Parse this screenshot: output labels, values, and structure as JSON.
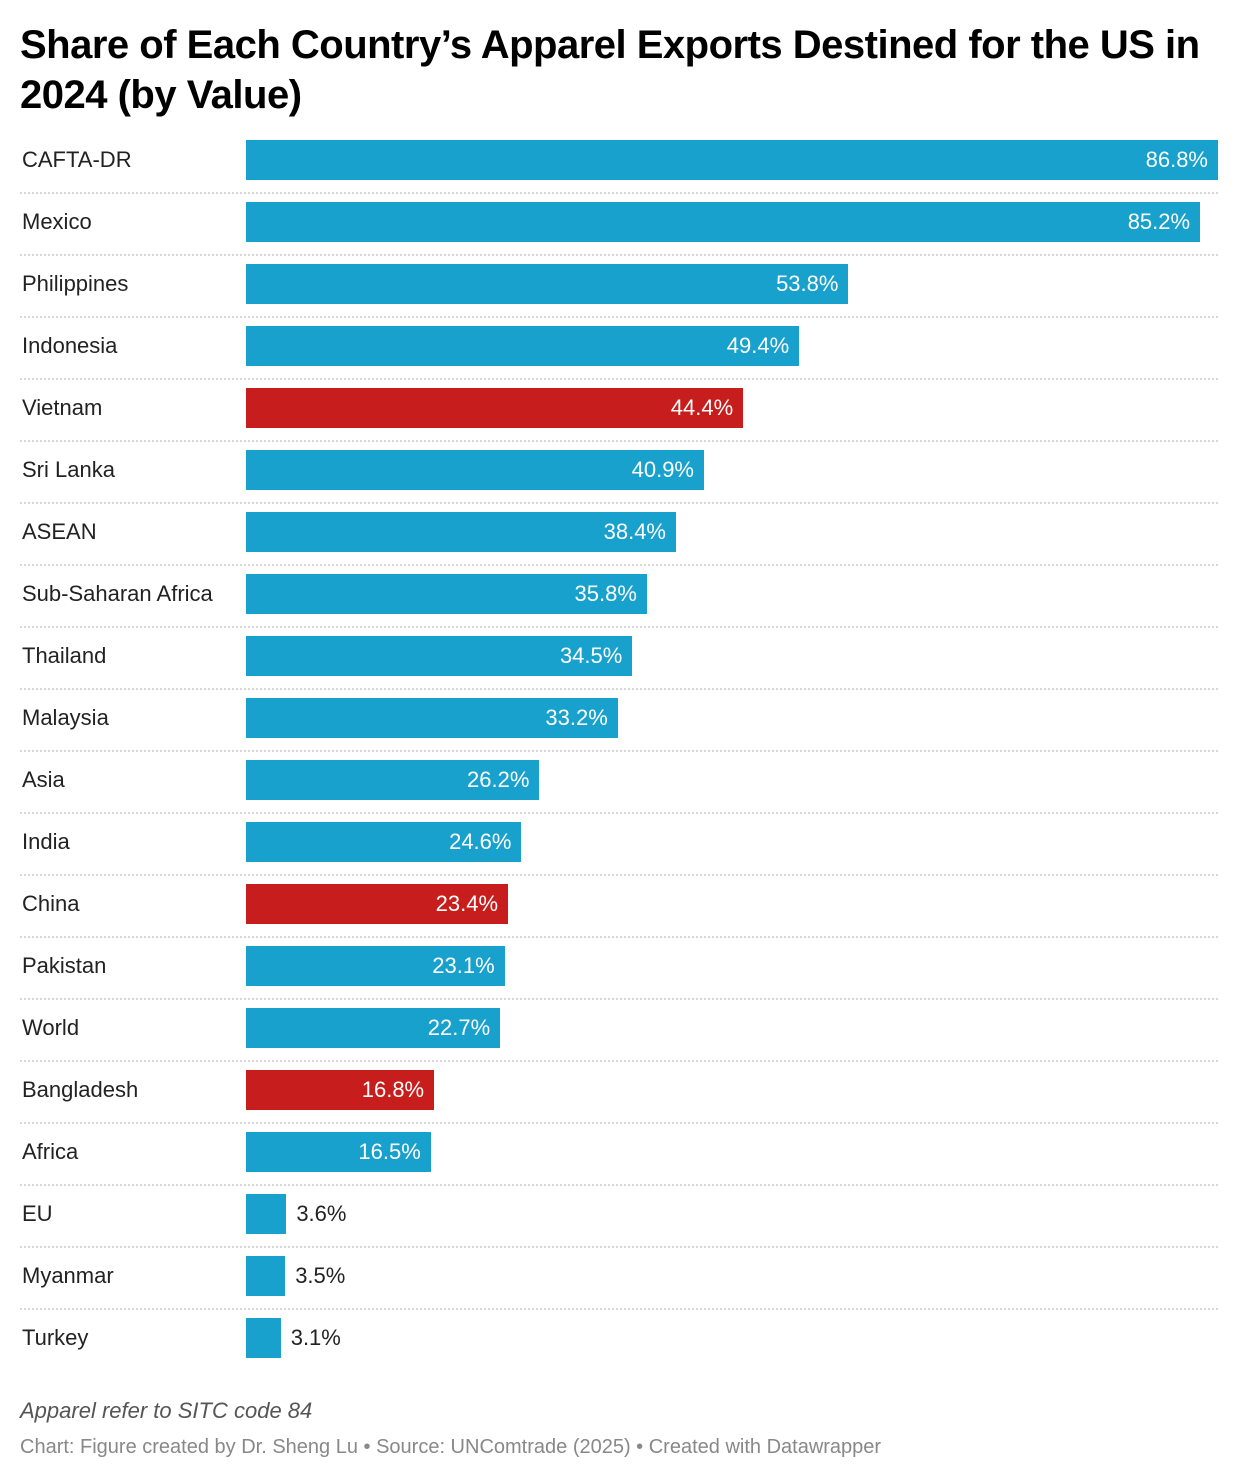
{
  "title": "Share of Each Country’s Apparel Exports Destined for the US in 2024 (by Value)",
  "notes": "Apparel refer to SITC code 84",
  "source": "Chart: Figure created by Dr. Sheng Lu • Source: UNComtrade (2025) • Created with Datawrapper",
  "colors": {
    "default": "#18a1cd",
    "highlight": "#c71e1d"
  },
  "chart_data": {
    "type": "bar",
    "orientation": "horizontal",
    "title": "Share of Each Country’s Apparel Exports Destined for the US in 2024 (by Value)",
    "unit": "%",
    "xlim": [
      0,
      86.8
    ],
    "grid": false,
    "categories": [
      "CAFTA-DR",
      "Mexico",
      "Philippines",
      "Indonesia",
      "Vietnam",
      "Sri Lanka",
      "ASEAN",
      "Sub-Saharan Africa",
      "Thailand",
      "Malaysia",
      "Asia",
      "India",
      "China",
      "Pakistan",
      "World",
      "Bangladesh",
      "Africa",
      "EU",
      "Myanmar",
      "Turkey"
    ],
    "values": [
      86.8,
      85.2,
      53.8,
      49.4,
      44.4,
      40.9,
      38.4,
      35.8,
      34.5,
      33.2,
      26.2,
      24.6,
      23.4,
      23.1,
      22.7,
      16.8,
      16.5,
      3.6,
      3.5,
      3.1
    ],
    "labels": [
      "86.8%",
      "85.2%",
      "53.8%",
      "49.4%",
      "44.4%",
      "40.9%",
      "38.4%",
      "35.8%",
      "34.5%",
      "33.2%",
      "26.2%",
      "24.6%",
      "23.4%",
      "23.1%",
      "22.7%",
      "16.8%",
      "16.5%",
      "3.6%",
      "3.5%",
      "3.1%"
    ],
    "highlighted": [
      "Vietnam",
      "China",
      "Bangladesh"
    ]
  }
}
